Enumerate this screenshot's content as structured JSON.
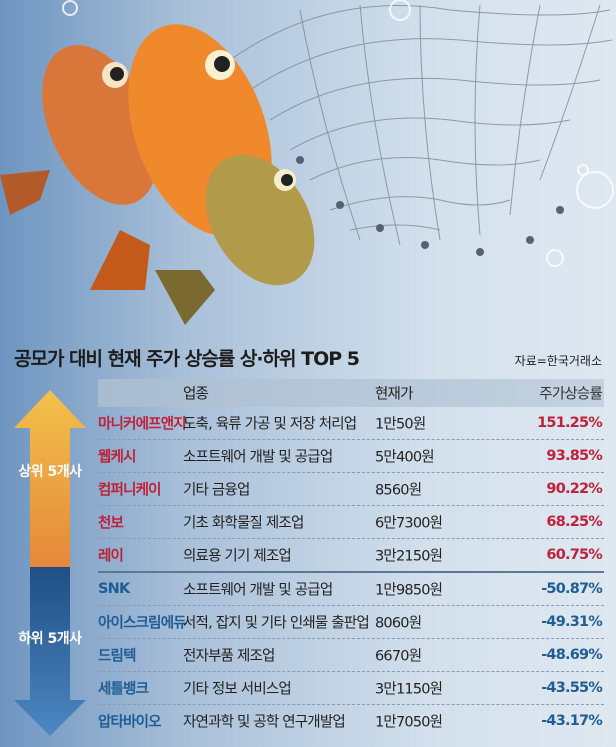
{
  "title": "공모가 대비 현재 주가 상승률 상·하위 TOP 5",
  "source": "자료=한국거래소",
  "groups": {
    "top": "상위 5개사",
    "bottom": "하위 5개사"
  },
  "colors": {
    "rise": "#c0213a",
    "fall": "#1f5d94",
    "up_arrow": "#e9a53d",
    "down_arrow": "#2a5d93"
  },
  "chart_data": {
    "type": "table",
    "title": "공모가 대비 현재 주가 상승률 상·하위 TOP 5",
    "columns": [
      "",
      "업종",
      "현재가",
      "주가상승률"
    ],
    "rows": [
      {
        "company": "마니커에프앤지",
        "industry": "도축, 육류 가공 및 저장 처리업",
        "price": "1만50원",
        "change": "151.25%",
        "group": "top"
      },
      {
        "company": "웹케시",
        "industry": "소프트웨어 개발 및 공급업",
        "price": "5만400원",
        "change": "93.85%",
        "group": "top"
      },
      {
        "company": "컴퍼니케이",
        "industry": "기타 금융업",
        "price": "8560원",
        "change": "90.22%",
        "group": "top"
      },
      {
        "company": "천보",
        "industry": "기초 화학물질 제조업",
        "price": "6만7300원",
        "change": "68.25%",
        "group": "top"
      },
      {
        "company": "레이",
        "industry": "의료용 기기 제조업",
        "price": "3만2150원",
        "change": "60.75%",
        "group": "top"
      },
      {
        "company": "SNK",
        "industry": "소프트웨어 개발 및 공급업",
        "price": "1만9850원",
        "change": "-50.87%",
        "group": "bottom"
      },
      {
        "company": "아이스크림에듀",
        "industry": "서적, 잡지 및 기타 인쇄물 출판업",
        "price": "8060원",
        "change": "-49.31%",
        "group": "bottom"
      },
      {
        "company": "드림텍",
        "industry": "전자부품 제조업",
        "price": "6670원",
        "change": "-48.69%",
        "group": "bottom"
      },
      {
        "company": "세틀뱅크",
        "industry": "기타 정보 서비스업",
        "price": "3만1150원",
        "change": "-43.55%",
        "group": "bottom"
      },
      {
        "company": "압타바이오",
        "industry": "자연과학 및 공학 연구개발업",
        "price": "1만7050원",
        "change": "-43.17%",
        "group": "bottom"
      }
    ]
  }
}
